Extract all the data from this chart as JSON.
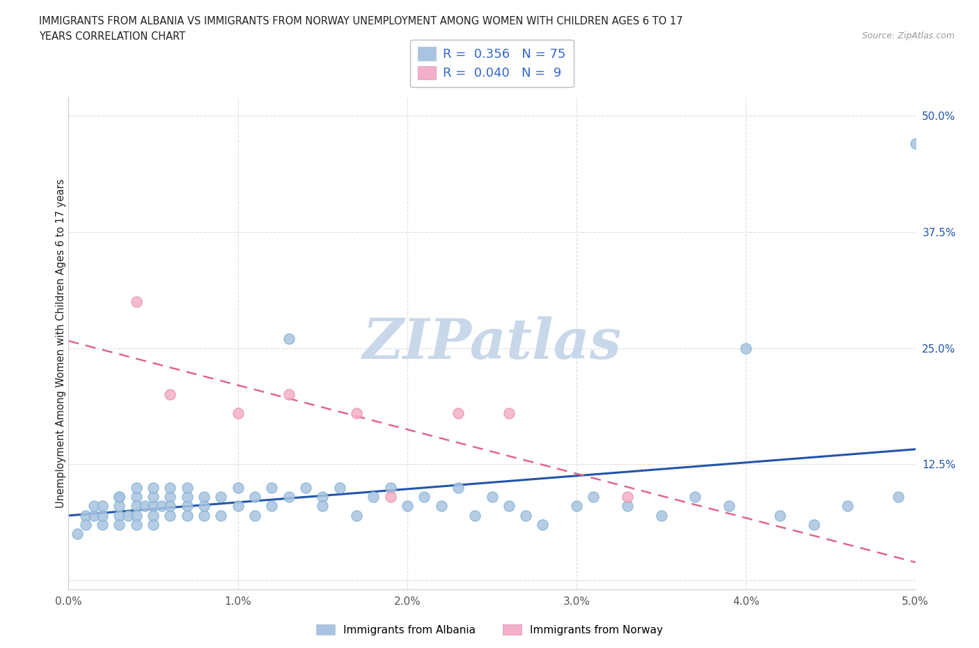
{
  "title_line1": "IMMIGRANTS FROM ALBANIA VS IMMIGRANTS FROM NORWAY UNEMPLOYMENT AMONG WOMEN WITH CHILDREN AGES 6 TO 17",
  "title_line2": "YEARS CORRELATION CHART",
  "source_text": "Source: ZipAtlas.com",
  "ylabel": "Unemployment Among Women with Children Ages 6 to 17 years",
  "xlim": [
    0.0,
    0.05
  ],
  "ylim": [
    -0.01,
    0.52
  ],
  "xticks": [
    0.0,
    0.01,
    0.02,
    0.03,
    0.04,
    0.05
  ],
  "xtick_labels": [
    "0.0%",
    "1.0%",
    "2.0%",
    "3.0%",
    "4.0%",
    "5.0%"
  ],
  "yticks": [
    0.0,
    0.125,
    0.25,
    0.375,
    0.5
  ],
  "ytick_labels": [
    "",
    "12.5%",
    "25.0%",
    "37.5%",
    "50.0%"
  ],
  "albania_R": 0.356,
  "albania_N": 75,
  "norway_R": 0.04,
  "norway_N": 9,
  "albania_color": "#a8c4e0",
  "albania_edge_color": "#7aafd4",
  "norway_color": "#f4b0c8",
  "norway_edge_color": "#e888aa",
  "albania_line_color": "#2255aa",
  "norway_line_color": "#e06688",
  "watermark_color": "#c8d8ea",
  "background_color": "#ffffff",
  "grid_color": "#dddddd",
  "text_color": "#222222",
  "tick_color": "#555555",
  "legend_R_color": "#3366cc",
  "source_color": "#999999",
  "legend_entry1": "R =  0.356   N = 75",
  "legend_entry2": "R =  0.040   N =  9",
  "legend_label1": "Immigrants from Albania",
  "legend_label2": "Immigrants from Norway",
  "alb_x": [
    0.0005,
    0.001,
    0.001,
    0.0015,
    0.0015,
    0.002,
    0.002,
    0.002,
    0.003,
    0.003,
    0.003,
    0.003,
    0.003,
    0.0035,
    0.004,
    0.004,
    0.004,
    0.004,
    0.004,
    0.0045,
    0.005,
    0.005,
    0.005,
    0.005,
    0.005,
    0.0055,
    0.006,
    0.006,
    0.006,
    0.006,
    0.007,
    0.007,
    0.007,
    0.007,
    0.008,
    0.008,
    0.008,
    0.009,
    0.009,
    0.01,
    0.01,
    0.011,
    0.011,
    0.012,
    0.012,
    0.013,
    0.013,
    0.014,
    0.015,
    0.015,
    0.016,
    0.017,
    0.018,
    0.019,
    0.02,
    0.021,
    0.022,
    0.023,
    0.024,
    0.025,
    0.026,
    0.027,
    0.028,
    0.03,
    0.031,
    0.033,
    0.035,
    0.037,
    0.039,
    0.04,
    0.042,
    0.044,
    0.046,
    0.049,
    0.05
  ],
  "alb_y": [
    0.05,
    0.07,
    0.06,
    0.07,
    0.08,
    0.06,
    0.08,
    0.07,
    0.09,
    0.07,
    0.08,
    0.06,
    0.09,
    0.07,
    0.09,
    0.08,
    0.07,
    0.1,
    0.06,
    0.08,
    0.08,
    0.07,
    0.09,
    0.1,
    0.06,
    0.08,
    0.07,
    0.09,
    0.08,
    0.1,
    0.08,
    0.07,
    0.09,
    0.1,
    0.07,
    0.09,
    0.08,
    0.09,
    0.07,
    0.1,
    0.08,
    0.09,
    0.07,
    0.1,
    0.08,
    0.09,
    0.26,
    0.1,
    0.09,
    0.08,
    0.1,
    0.07,
    0.09,
    0.1,
    0.08,
    0.09,
    0.08,
    0.1,
    0.07,
    0.09,
    0.08,
    0.07,
    0.06,
    0.08,
    0.09,
    0.08,
    0.07,
    0.09,
    0.08,
    0.25,
    0.07,
    0.06,
    0.08,
    0.09,
    0.47
  ],
  "nor_x": [
    0.004,
    0.006,
    0.01,
    0.013,
    0.017,
    0.019,
    0.023,
    0.026,
    0.033
  ],
  "nor_y": [
    0.3,
    0.2,
    0.18,
    0.2,
    0.18,
    0.09,
    0.18,
    0.18,
    0.09
  ]
}
